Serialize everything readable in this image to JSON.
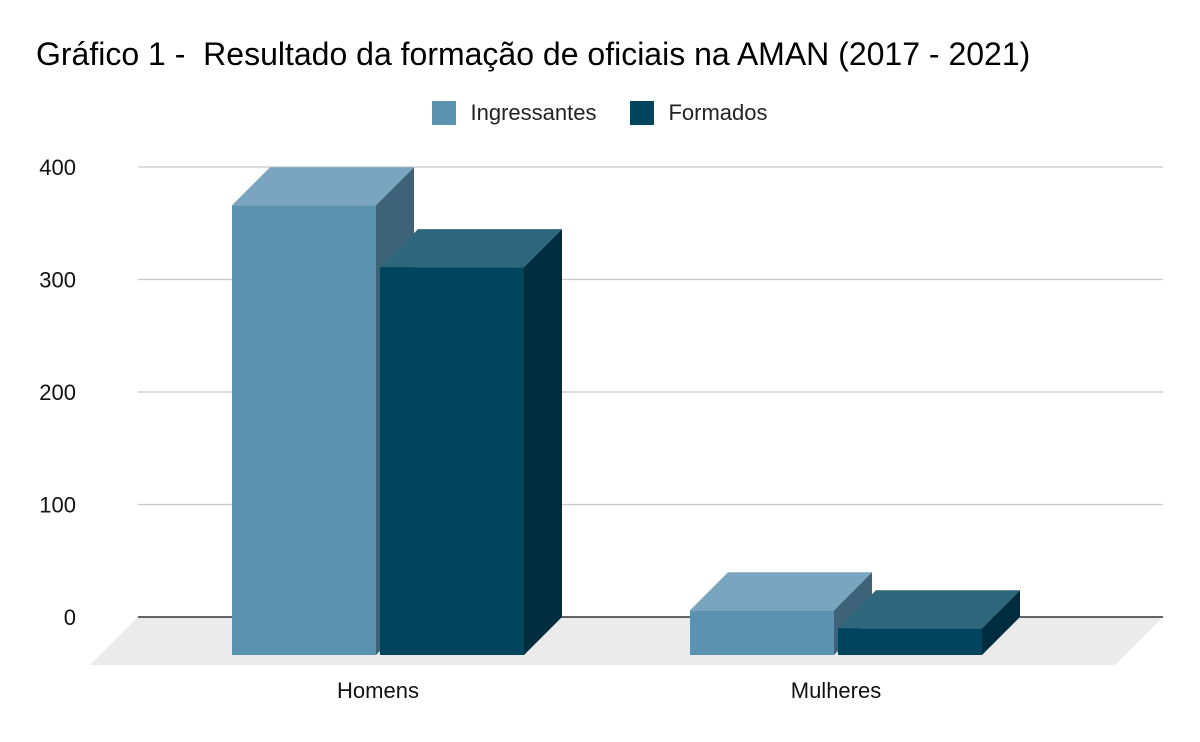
{
  "chart_data": {
    "type": "bar",
    "title": "Gráfico 1 -  Resultado da formação de oficiais na AMAN (2017 - 2021)",
    "categories": [
      "Homens",
      "Mulheres"
    ],
    "series": [
      {
        "name": "Ingressantes",
        "color": "#5b92b0",
        "values": [
          366,
          6
        ]
      },
      {
        "name": "Formados",
        "color": "#00445e",
        "values": [
          311,
          -10
        ]
      }
    ],
    "ylim": [
      0,
      400
    ],
    "yticks": [
      0,
      100,
      200,
      300,
      400
    ],
    "grid": true,
    "legend_position": "top-center",
    "style": "3d-column"
  }
}
